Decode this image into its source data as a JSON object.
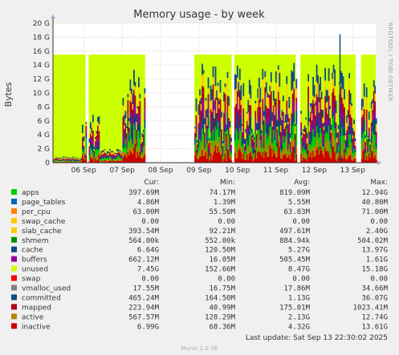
{
  "chart_data": {
    "type": "area",
    "title": "Memory usage - by week",
    "ylabel": "Bytes",
    "side_label": "RRDTOOL / TOBI OETIKER",
    "ylim": [
      0,
      20
    ],
    "y_unit": "G",
    "y_ticks": [
      {
        "value": 0,
        "label": "0"
      },
      {
        "value": 2,
        "label": "2 G"
      },
      {
        "value": 4,
        "label": "4 G"
      },
      {
        "value": 6,
        "label": "6 G"
      },
      {
        "value": 8,
        "label": "8 G"
      },
      {
        "value": 10,
        "label": "10 G"
      },
      {
        "value": 12,
        "label": "12 G"
      },
      {
        "value": 14,
        "label": "14 G"
      },
      {
        "value": 16,
        "label": "16 G"
      },
      {
        "value": 18,
        "label": "18 G"
      },
      {
        "value": 20,
        "label": "20 G"
      }
    ],
    "xlim_days": [
      5.2,
      13.6
    ],
    "x_ticks": [
      {
        "day": 6,
        "label": "06 Sep"
      },
      {
        "day": 7,
        "label": "07 Sep"
      },
      {
        "day": 8,
        "label": "08 Sep"
      },
      {
        "day": 9,
        "label": "09 Sep"
      },
      {
        "day": 10,
        "label": "10 Sep"
      },
      {
        "day": 11,
        "label": "11 Sep"
      },
      {
        "day": 12,
        "label": "12 Sep"
      },
      {
        "day": 13,
        "label": "13 Sep"
      }
    ],
    "data_segments": [
      [
        5.2,
        6.05
      ],
      [
        6.13,
        7.6
      ],
      [
        8.88,
        9.85
      ],
      [
        9.92,
        11.52
      ],
      [
        11.64,
        13.08
      ],
      [
        13.22,
        13.6
      ]
    ],
    "unused_top": 15.5,
    "spike": {
      "day": 12.67,
      "value": 18.4
    },
    "columns": [
      "Cur:",
      "Min:",
      "Avg:",
      "Max:"
    ],
    "series": [
      {
        "name": "apps",
        "color": "#00cc00",
        "values": [
          "397.69M",
          "74.17M",
          "819.09M",
          "12.94G"
        ]
      },
      {
        "name": "page_tables",
        "color": "#0066b3",
        "values": [
          "4.86M",
          "1.39M",
          "5.55M",
          "40.80M"
        ]
      },
      {
        "name": "per_cpu",
        "color": "#ff8000",
        "values": [
          "63.00M",
          "55.50M",
          "63.83M",
          "71.00M"
        ]
      },
      {
        "name": "swap_cache",
        "color": "#ffcc00",
        "values": [
          "0.00",
          "0.00",
          "0.00",
          "0.00"
        ]
      },
      {
        "name": "slab_cache",
        "color": "#ffcc00",
        "values": [
          "393.54M",
          "92.21M",
          "497.61M",
          "2.40G"
        ]
      },
      {
        "name": "shmem",
        "color": "#008f00",
        "values": [
          "564.00k",
          "552.00k",
          "884.94k",
          "504.02M"
        ]
      },
      {
        "name": "cache",
        "color": "#00487d",
        "values": [
          "6.64G",
          "120.50M",
          "5.27G",
          "13.97G"
        ]
      },
      {
        "name": "buffers",
        "color": "#990099",
        "values": [
          "662.12M",
          "16.05M",
          "505.45M",
          "1.61G"
        ]
      },
      {
        "name": "unused",
        "color": "#ccff00",
        "values": [
          "7.45G",
          "152.66M",
          "8.47G",
          "15.18G"
        ]
      },
      {
        "name": "swap",
        "color": "#ff0000",
        "values": [
          "0.00",
          "0.00",
          "0.00",
          "0.00"
        ]
      },
      {
        "name": "vmalloc_used",
        "color": "#808080",
        "values": [
          "17.55M",
          "16.75M",
          "17.86M",
          "34.66M"
        ]
      },
      {
        "name": "committed",
        "color": "#0f4c81",
        "values": [
          "465.24M",
          "164.50M",
          "1.13G",
          "36.07G"
        ]
      },
      {
        "name": "mapped",
        "color": "#b3001b",
        "values": [
          "223.94M",
          "40.99M",
          "175.01M",
          "1023.41M"
        ]
      },
      {
        "name": "active",
        "color": "#b38600",
        "values": [
          "567.57M",
          "128.29M",
          "2.13G",
          "12.74G"
        ]
      },
      {
        "name": "inactive",
        "color": "#cc0000",
        "values": [
          "6.99G",
          "68.36M",
          "4.32G",
          "13.61G"
        ]
      }
    ],
    "last_update": "Last update: Sat Sep 13 22:30:02 2025",
    "version": "Munin 2.0.76"
  }
}
